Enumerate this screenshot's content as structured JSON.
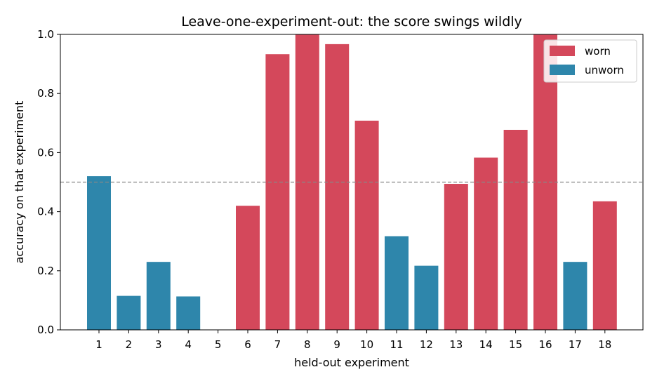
{
  "chart_data": {
    "type": "bar",
    "title": "Leave-one-experiment-out: the score swings wildly",
    "xlabel": "held-out experiment",
    "ylabel": "accuracy on that experiment",
    "ylim": [
      0,
      1
    ],
    "yticks": [
      "0.0",
      "0.2",
      "0.4",
      "0.6",
      "0.8",
      "1.0"
    ],
    "categories": [
      "1",
      "2",
      "3",
      "4",
      "5",
      "6",
      "7",
      "8",
      "9",
      "10",
      "11",
      "12",
      "13",
      "14",
      "15",
      "16",
      "17",
      "18"
    ],
    "values": [
      0.52,
      0.115,
      0.23,
      0.113,
      0.0,
      0.42,
      0.933,
      1.0,
      0.967,
      0.708,
      0.317,
      0.217,
      0.494,
      0.583,
      0.677,
      1.0,
      0.23,
      0.435
    ],
    "groups": [
      "unworn",
      "unworn",
      "unworn",
      "unworn",
      "worn",
      "worn",
      "worn",
      "worn",
      "worn",
      "worn",
      "unworn",
      "unworn",
      "worn",
      "worn",
      "worn",
      "worn",
      "unworn",
      "worn"
    ],
    "reference_line": 0.5,
    "legend": {
      "position": "top-right",
      "entries": [
        {
          "key": "worn",
          "label": "worn",
          "color": "#d4485b"
        },
        {
          "key": "unworn",
          "label": "unworn",
          "color": "#2e86ab"
        }
      ]
    },
    "colors": {
      "worn": "#d4485b",
      "unworn": "#2e86ab",
      "reference": "#888888"
    },
    "grid": false
  }
}
